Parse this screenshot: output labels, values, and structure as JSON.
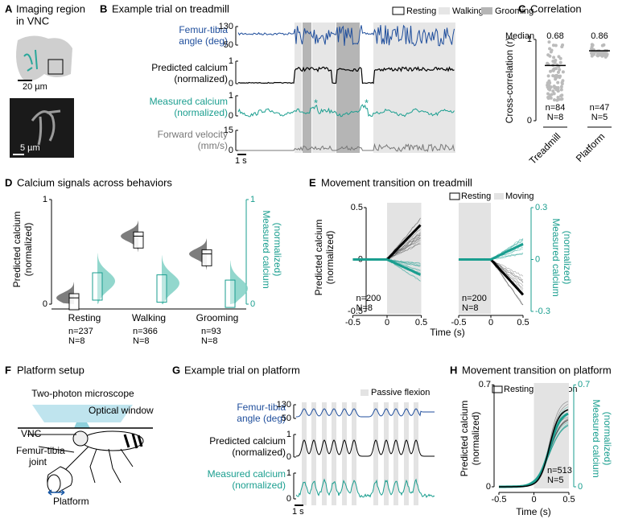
{
  "A": {
    "label": "A",
    "title": [
      "Imaging region",
      "in VNC"
    ],
    "scale_bars": [
      "20 µm",
      "5 µm"
    ]
  },
  "B": {
    "label": "B",
    "title": "Example trial on treadmill",
    "legend": [
      "Resting",
      "Walking",
      "Grooming"
    ],
    "rows": [
      {
        "label": [
          "Femur-tibia",
          "angle (deg)"
        ],
        "ticks": [
          130,
          50
        ]
      },
      {
        "label": [
          "Predicted calcium",
          "(normalized)"
        ],
        "ticks": [
          1,
          0
        ]
      },
      {
        "label": [
          "Measured calcium",
          "(normalized)"
        ],
        "ticks": [
          1,
          0
        ]
      },
      {
        "label": [
          "Forward velocity",
          "(mm/s)"
        ],
        "ticks": [
          15,
          0
        ]
      }
    ],
    "markers": [
      "*",
      "*"
    ],
    "scale_bar": "1 s"
  },
  "C": {
    "label": "C",
    "title": "Correlation",
    "median_label": "Median",
    "medians": [
      0.68,
      0.86
    ],
    "y_label": "Cross-correlation (r)",
    "yticks": [
      1,
      0
    ],
    "groups": [
      {
        "name": "Treadmill",
        "n": "n=84",
        "N": "N=8"
      },
      {
        "name": "Platform",
        "n": "n=47",
        "N": "N=5"
      }
    ]
  },
  "D": {
    "label": "D",
    "title": "Calcium signals across behaviors",
    "y_label": [
      "Predicted calcium",
      "(normalized)"
    ],
    "yticks": [
      1,
      0
    ],
    "y2_label": [
      "Measured calcium",
      "(normalized)"
    ],
    "y2ticks": [
      1,
      0
    ],
    "groups": [
      {
        "name": "Resting",
        "n": "n=237",
        "N": "N=8"
      },
      {
        "name": "Walking",
        "n": "n=366",
        "N": "N=8"
      },
      {
        "name": "Grooming",
        "n": "n=93",
        "N": "N=8"
      }
    ]
  },
  "E": {
    "label": "E",
    "title": "Movement transition on treadmill",
    "legend": [
      "Resting",
      "Moving"
    ],
    "y_label": [
      "Predicted calcium",
      "(normalized)"
    ],
    "yticks": [
      0.5,
      0,
      -0.5
    ],
    "y2_label": [
      "Measured calcium",
      "(normalized)"
    ],
    "y2ticks": [
      0.3,
      0,
      -0.3
    ],
    "xticks": [
      -0.5,
      0,
      0.5
    ],
    "x_label": "Time (s)",
    "counts": [
      [
        "n=200",
        "N=8"
      ],
      [
        "n=200",
        "N=8"
      ]
    ]
  },
  "F": {
    "label": "F",
    "title": "Platform setup",
    "labels": [
      "Two-photon microscope",
      "Optical window",
      "VNC",
      "Femur-tibia",
      "joint",
      "Platform"
    ]
  },
  "G": {
    "label": "G",
    "title": "Example trial on platform",
    "legend": [
      "Passive flexion"
    ],
    "rows": [
      {
        "label": [
          "Femur-tibia",
          "angle (deg)"
        ],
        "ticks": [
          130,
          50
        ]
      },
      {
        "label": [
          "Predicted calcium",
          "(normalized)"
        ],
        "ticks": [
          1,
          0
        ]
      },
      {
        "label": [
          "Measured calcium",
          "(normalized)"
        ],
        "ticks": [
          1,
          0
        ]
      }
    ],
    "scale_bar": "1 s"
  },
  "H": {
    "label": "H",
    "title": "Movement transition on platform",
    "legend": [
      "Resting",
      "Flexion"
    ],
    "y_label": [
      "Predicted calcium",
      "(normalized)"
    ],
    "yticks": [
      0.7,
      0
    ],
    "y2_label": [
      "Measured calcium",
      "(normalized)"
    ],
    "y2ticks": [
      0.7,
      0
    ],
    "xticks": [
      -0.5,
      0,
      0.5
    ],
    "x_label": "Time (s)",
    "counts": [
      "n=513",
      "N=5"
    ]
  }
}
